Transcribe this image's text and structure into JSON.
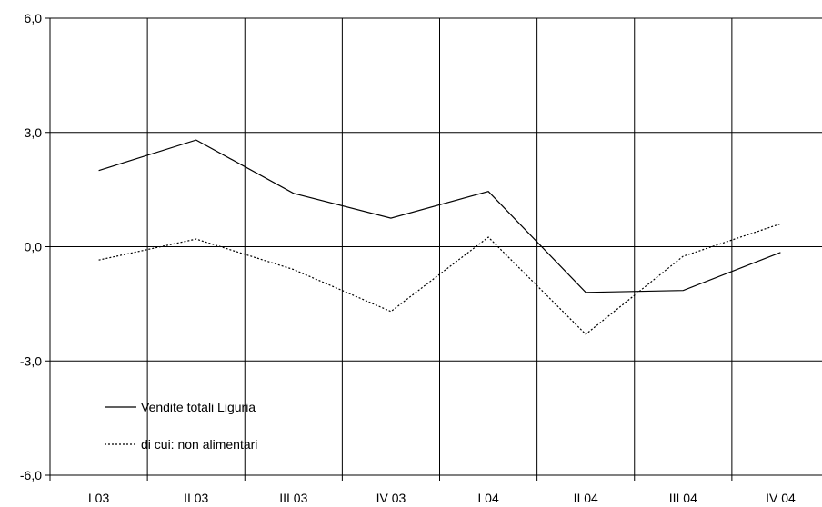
{
  "chart_data": {
    "type": "line",
    "categories": [
      "I 03",
      "II 03",
      "III 03",
      "IV 03",
      "I 04",
      "II 04",
      "III 04",
      "IV 04"
    ],
    "ylim": [
      -6.0,
      6.0
    ],
    "yticks": [
      6.0,
      3.0,
      0.0,
      -3.0,
      -6.0
    ],
    "ytick_labels": [
      "6,0",
      "3,0",
      "0,0",
      "-3,0",
      "-6,0"
    ],
    "grid": true,
    "legend_position": "bottom-left",
    "series": [
      {
        "name": "Vendite totali Liguria",
        "style": "solid",
        "color": "#000000",
        "values": [
          2.0,
          2.8,
          1.4,
          0.75,
          1.45,
          -1.2,
          -1.15,
          -0.15
        ]
      },
      {
        "name": "di cui: non alimentari",
        "style": "dotted",
        "color": "#000000",
        "values": [
          -0.35,
          0.2,
          -0.6,
          -1.7,
          0.25,
          -2.3,
          -0.25,
          0.6
        ]
      }
    ]
  }
}
